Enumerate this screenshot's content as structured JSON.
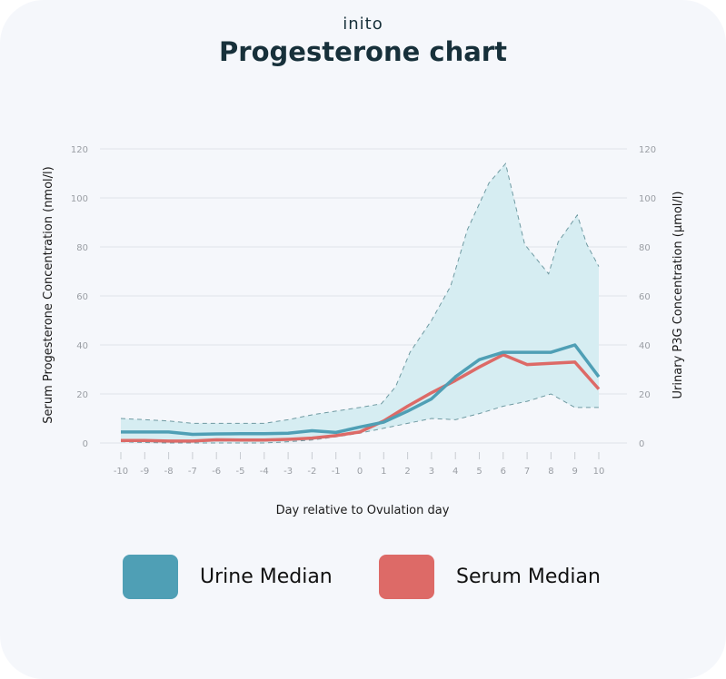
{
  "brand": {
    "logo_text": "inito"
  },
  "header": {
    "title": "Progesterone chart"
  },
  "colors": {
    "background": "#f5f7fb",
    "urine_median": "#4f9fb5",
    "serum_median": "#dd6a67",
    "band_fill": "#d6edf2",
    "band_edge": "#6f9aa2",
    "grid": "#e0e3e8",
    "tick_text": "#9a9ea4",
    "title": "#17303a"
  },
  "legend": {
    "items": [
      {
        "label": "Urine Median",
        "color": "#4f9fb5"
      },
      {
        "label": "Serum Median",
        "color": "#dd6a67"
      }
    ]
  },
  "chart_data": {
    "type": "line",
    "title": "Progesterone chart",
    "xlabel": "Day relative to Ovulation day",
    "ylabel": "Serum Progesterone Concentration (nmol/l)",
    "y2label": "Urinary P3G Concentration (µmol/l)",
    "ylim": [
      0,
      120
    ],
    "y2lim": [
      0,
      120
    ],
    "yticks": [
      0,
      20,
      40,
      60,
      80,
      100,
      120
    ],
    "y2ticks": [
      0,
      20,
      40,
      60,
      80,
      100,
      120
    ],
    "x": [
      -10,
      -9,
      -8,
      -7,
      -6,
      -5,
      -4,
      -3,
      -2,
      -1,
      0,
      1,
      2,
      3,
      4,
      5,
      6,
      7,
      8,
      9,
      10
    ],
    "xtick_labels": [
      "-10",
      "-9",
      "-8",
      "-7",
      "-6",
      "-5",
      "-4",
      "-3",
      "-2",
      "-1",
      "0",
      "1",
      "2",
      "3",
      "4",
      "5",
      "6",
      "7",
      "8",
      "9",
      "10"
    ],
    "grid": true,
    "legend_position": "bottom",
    "series": [
      {
        "name": "Urine Median",
        "axis": "right",
        "values": [
          4.5,
          4.5,
          4.5,
          3.5,
          3.7,
          3.8,
          3.8,
          4.0,
          5.0,
          4.3,
          6.5,
          8.5,
          13,
          18,
          27,
          34,
          37,
          37,
          37,
          40,
          27
        ]
      },
      {
        "name": "Serum Median",
        "axis": "left",
        "values": [
          1.0,
          1.0,
          0.8,
          0.8,
          1.3,
          1.2,
          1.2,
          1.5,
          2.0,
          3.0,
          4.5,
          9,
          15,
          20.5,
          25.5,
          31,
          36,
          32,
          32.5,
          33,
          22
        ]
      }
    ],
    "range_band": {
      "name": "Urine range (shaded, dashed edges)",
      "upper": [
        [
          -10,
          10
        ],
        [
          -9,
          9.5
        ],
        [
          -8,
          9
        ],
        [
          -7,
          8
        ],
        [
          -6,
          8
        ],
        [
          -5,
          8
        ],
        [
          -4,
          8
        ],
        [
          -3,
          9.5
        ],
        [
          -2,
          11.5
        ],
        [
          -1,
          13
        ],
        [
          0,
          14.5
        ],
        [
          0.9,
          16
        ],
        [
          1.5,
          23
        ],
        [
          2.1,
          37
        ],
        [
          3,
          50
        ],
        [
          3.8,
          64
        ],
        [
          4.5,
          87
        ],
        [
          5.4,
          106
        ],
        [
          6.1,
          114
        ],
        [
          6.9,
          81
        ],
        [
          7.9,
          69
        ],
        [
          8.3,
          82
        ],
        [
          9.1,
          93
        ],
        [
          9.5,
          81
        ],
        [
          10,
          72
        ]
      ],
      "lower": [
        [
          -10,
          0.5
        ],
        [
          -9,
          0.2
        ],
        [
          -8,
          0
        ],
        [
          -7,
          0
        ],
        [
          -6,
          0
        ],
        [
          -5,
          0
        ],
        [
          -4,
          0
        ],
        [
          -3,
          0.5
        ],
        [
          -2,
          1.2
        ],
        [
          -1,
          2.5
        ],
        [
          0,
          4
        ],
        [
          1,
          6
        ],
        [
          2,
          8
        ],
        [
          3,
          10
        ],
        [
          4,
          9.5
        ],
        [
          5,
          12
        ],
        [
          6,
          15
        ],
        [
          7,
          17
        ],
        [
          8,
          20
        ],
        [
          9,
          14.5
        ],
        [
          10,
          14.5
        ]
      ]
    }
  }
}
